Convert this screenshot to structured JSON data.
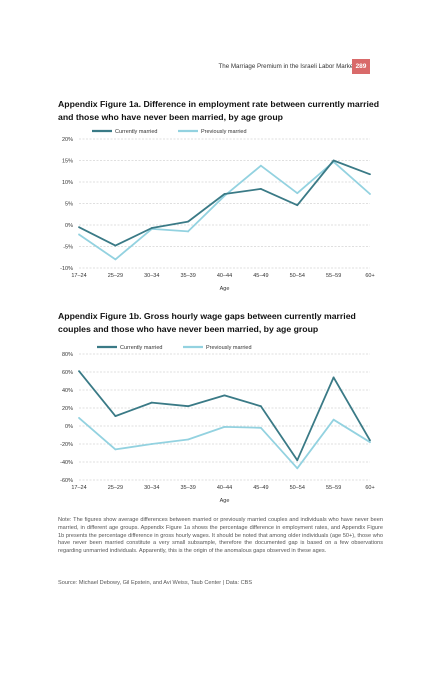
{
  "header": {
    "running_title": "The Marriage Premium in the Israeli Labor Market",
    "page_number": "289",
    "badge_color": "#d96a6a"
  },
  "colors": {
    "currently_married": "#3a7a86",
    "previously_married": "#93d2e0",
    "grid": "#bfbfbf"
  },
  "chart_data": [
    {
      "type": "line",
      "title": "Appendix Figure 1a. Difference in employment rate between currently married and those who have never been married, by age group",
      "xlabel": "Age",
      "ylabel": "",
      "categories": [
        "17–24",
        "25–29",
        "30–34",
        "35–39",
        "40–44",
        "45–49",
        "50–54",
        "55–59",
        "60+"
      ],
      "ylim": [
        -10,
        20
      ],
      "yticks": [
        -10,
        -5,
        0,
        5,
        10,
        15,
        20
      ],
      "ytick_labels": [
        "-10%",
        "-5%",
        "0%",
        "5%",
        "10%",
        "15%",
        "20%"
      ],
      "grid": true,
      "legend": "top",
      "series": [
        {
          "name": "Currently married",
          "values": [
            -0.5,
            -4.8,
            -0.7,
            0.8,
            7.2,
            8.4,
            4.6,
            15.0,
            11.8
          ]
        },
        {
          "name": "Previously married",
          "values": [
            -2.2,
            -8.0,
            -0.9,
            -1.5,
            6.8,
            13.8,
            7.4,
            14.7,
            7.2
          ]
        }
      ]
    },
    {
      "type": "line",
      "title": "Appendix Figure 1b. Gross hourly wage gaps between currently married couples and those who have never been married, by age group",
      "xlabel": "Age",
      "ylabel": "",
      "categories": [
        "17–24",
        "25–29",
        "30–34",
        "35–39",
        "40–44",
        "45–49",
        "50–54",
        "55–59",
        "60+"
      ],
      "ylim": [
        -60,
        80
      ],
      "yticks": [
        -60,
        -40,
        -20,
        0,
        20,
        40,
        60,
        80
      ],
      "ytick_labels": [
        "-60%",
        "-40%",
        "-20%",
        "0%",
        "20%",
        "40%",
        "60%",
        "80%"
      ],
      "grid": true,
      "legend": "top",
      "series": [
        {
          "name": "Currently married",
          "values": [
            61,
            11,
            26,
            22,
            34,
            22,
            -38,
            54,
            -16
          ]
        },
        {
          "name": "Previously married",
          "values": [
            9,
            -26,
            -20,
            -15,
            -1,
            -2,
            -47,
            7,
            -18
          ]
        }
      ]
    }
  ],
  "note": "Note: The figures show average differences between married or previously married couples and individuals who have never been married, in different age groups. Appendix Figure 1a shows the percentage difference in employment rates, and Appendix Figure 1b presents the percentage difference in gross hourly wages. It should be noted that among older individuals (age 50+), those who have never been married constitute a very small subsample, therefore the documented gap is based on a few observations regarding unmarried individuals. Apparently, this is the origin of the anomalous gaps observed in these ages.",
  "source": "Source: Michael Debowy, Gil Epstein, and Avi Weiss, Taub Center | Data: CBS"
}
